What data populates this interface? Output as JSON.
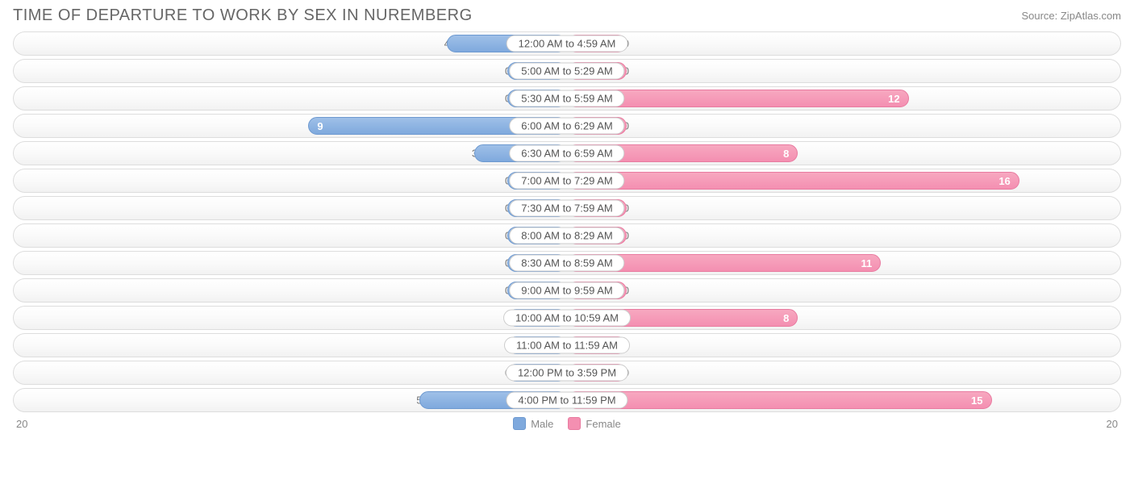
{
  "title": "TIME OF DEPARTURE TO WORK BY SEX IN NUREMBERG",
  "source": "Source: ZipAtlas.com",
  "axis_max": 20,
  "axis_left_label": "20",
  "axis_right_label": "20",
  "colors": {
    "male_bar": "#7fa9dd",
    "male_border": "#6d99d0",
    "female_bar": "#f48fb1",
    "female_border": "#e87ba0",
    "row_border": "#dddddd",
    "text": "#666666",
    "value_text": "#ffffff",
    "ext_text": "#777777"
  },
  "legend": {
    "male": "Male",
    "female": "Female"
  },
  "rows": [
    {
      "label": "12:00 AM to 4:59 AM",
      "male": 4,
      "female": 0
    },
    {
      "label": "5:00 AM to 5:29 AM",
      "male": 0,
      "female": 0
    },
    {
      "label": "5:30 AM to 5:59 AM",
      "male": 0,
      "female": 12
    },
    {
      "label": "6:00 AM to 6:29 AM",
      "male": 9,
      "female": 0
    },
    {
      "label": "6:30 AM to 6:59 AM",
      "male": 3,
      "female": 8
    },
    {
      "label": "7:00 AM to 7:29 AM",
      "male": 0,
      "female": 16
    },
    {
      "label": "7:30 AM to 7:59 AM",
      "male": 0,
      "female": 0
    },
    {
      "label": "8:00 AM to 8:29 AM",
      "male": 0,
      "female": 0
    },
    {
      "label": "8:30 AM to 8:59 AM",
      "male": 0,
      "female": 11
    },
    {
      "label": "9:00 AM to 9:59 AM",
      "male": 0,
      "female": 0
    },
    {
      "label": "10:00 AM to 10:59 AM",
      "male": 0,
      "female": 8
    },
    {
      "label": "11:00 AM to 11:59 AM",
      "male": 0,
      "female": 0
    },
    {
      "label": "12:00 PM to 3:59 PM",
      "male": 0,
      "female": 0
    },
    {
      "label": "4:00 PM to 11:59 PM",
      "male": 5,
      "female": 15
    }
  ]
}
